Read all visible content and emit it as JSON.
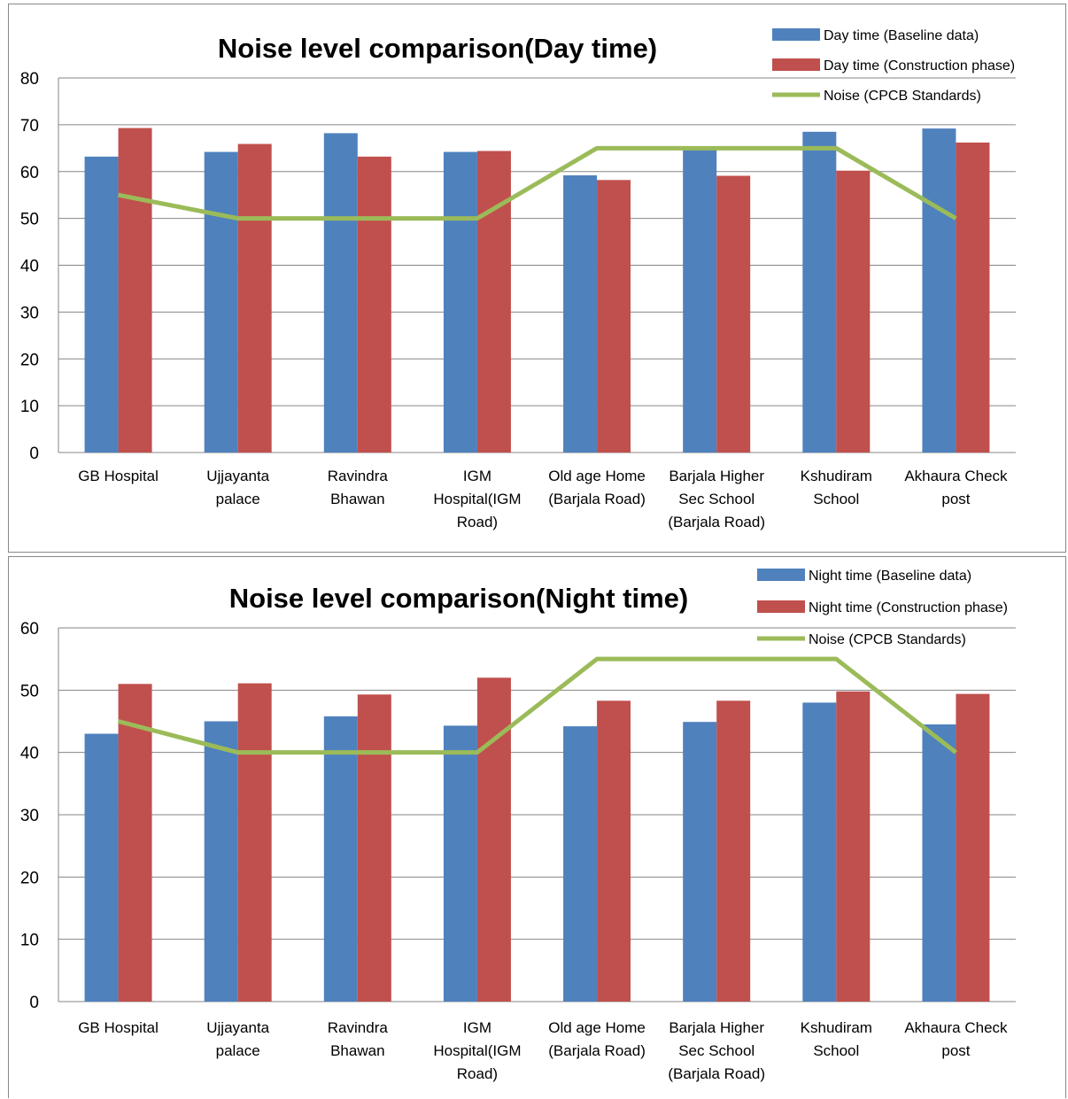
{
  "chart_data": [
    {
      "type": "bar",
      "title": "Noise level comparison(Day time)",
      "categories": [
        [
          "GB Hospital"
        ],
        [
          "Ujjayanta",
          "palace"
        ],
        [
          "Ravindra",
          "Bhawan"
        ],
        [
          "IGM",
          "Hospital(IGM",
          "Road)"
        ],
        [
          "Old age Home",
          "(Barjala Road)"
        ],
        [
          "Barjala Higher",
          "Sec School",
          "(Barjala Road)"
        ],
        [
          "Kshudiram",
          "School"
        ],
        [
          "Akhaura Check",
          "post"
        ]
      ],
      "series": [
        {
          "name": "Day time (Baseline data)",
          "kind": "bar",
          "color": "#4F81BD",
          "values": [
            63.2,
            64.2,
            68.2,
            64.2,
            59.2,
            64.6,
            68.5,
            69.2
          ]
        },
        {
          "name": "Day time (Construction phase)",
          "kind": "bar",
          "color": "#C0504D",
          "values": [
            69.3,
            65.9,
            63.2,
            64.4,
            58.2,
            59.1,
            60.2,
            66.2
          ]
        },
        {
          "name": "Noise (CPCB Standards)",
          "kind": "line",
          "color": "#9BBB59",
          "values": [
            55,
            50,
            50,
            50,
            65,
            65,
            65,
            50
          ]
        }
      ],
      "ylim": [
        0,
        80
      ],
      "yticks": [
        0,
        10,
        20,
        30,
        40,
        50,
        60,
        70,
        80
      ],
      "grid": true,
      "legend_position": "top-right"
    },
    {
      "type": "bar",
      "title": "Noise level comparison(Night time)",
      "categories": [
        [
          "GB Hospital"
        ],
        [
          "Ujjayanta",
          "palace"
        ],
        [
          "Ravindra",
          "Bhawan"
        ],
        [
          "IGM",
          "Hospital(IGM",
          "Road)"
        ],
        [
          "Old age Home",
          "(Barjala Road)"
        ],
        [
          "Barjala Higher",
          "Sec School",
          "(Barjala Road)"
        ],
        [
          "Kshudiram",
          "School"
        ],
        [
          "Akhaura Check",
          "post"
        ]
      ],
      "series": [
        {
          "name": "Night time (Baseline data)",
          "kind": "bar",
          "color": "#4F81BD",
          "values": [
            43.0,
            45.0,
            45.8,
            44.3,
            44.2,
            44.9,
            48.0,
            44.5
          ]
        },
        {
          "name": "Night time (Construction phase)",
          "kind": "bar",
          "color": "#C0504D",
          "values": [
            51.0,
            51.1,
            49.3,
            52.0,
            48.3,
            48.3,
            49.8,
            49.4
          ]
        },
        {
          "name": "Noise (CPCB Standards)",
          "kind": "line",
          "color": "#9BBB59",
          "values": [
            45,
            40,
            40,
            40,
            55,
            55,
            55,
            40
          ]
        }
      ],
      "ylim": [
        0,
        60
      ],
      "yticks": [
        0,
        10,
        20,
        30,
        40,
        50,
        60
      ],
      "grid": true,
      "legend_position": "top-right"
    }
  ]
}
